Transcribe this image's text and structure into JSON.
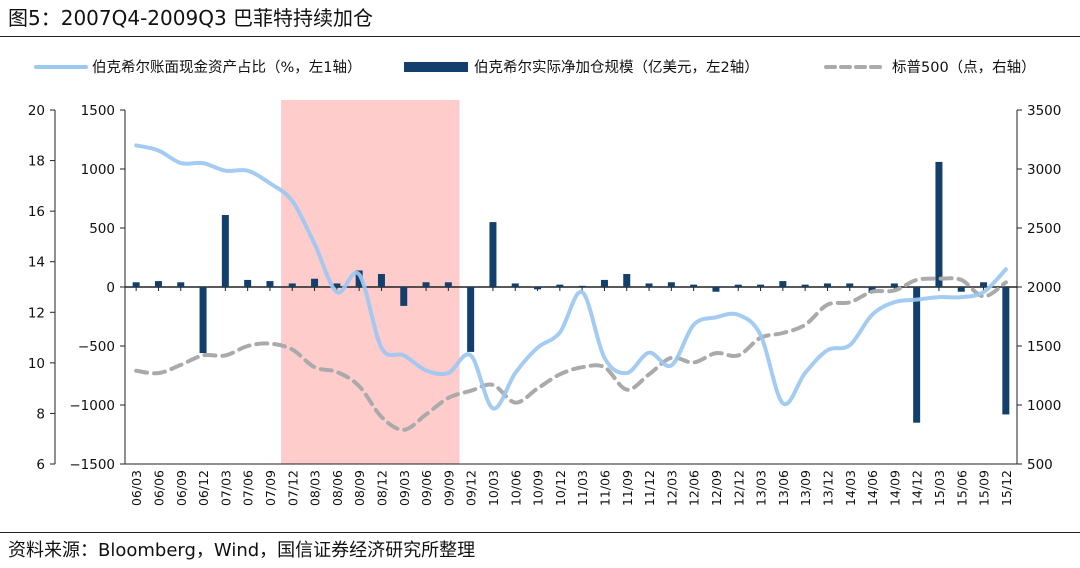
{
  "figure": {
    "title": "图5：2007Q4-2009Q3 巴菲特持续加仓",
    "source": "资料来源：Bloomberg，Wind，国信证券经济研究所整理"
  },
  "colors": {
    "pct_line": "#9cc8f2",
    "bars": "#123f6b",
    "sp500": "#aaaaaa",
    "highlight": "#ffcccc",
    "axis": "#222222"
  },
  "chart_data": {
    "type": "bar",
    "categories": [
      "06/03",
      "06/06",
      "06/09",
      "06/12",
      "07/03",
      "07/06",
      "07/09",
      "07/12",
      "08/03",
      "08/06",
      "08/09",
      "08/12",
      "09/03",
      "09/06",
      "09/09",
      "09/12",
      "10/03",
      "10/06",
      "10/09",
      "10/12",
      "11/03",
      "11/06",
      "11/09",
      "11/12",
      "12/03",
      "12/06",
      "12/09",
      "12/12",
      "13/03",
      "13/06",
      "13/09",
      "13/12",
      "14/03",
      "14/06",
      "14/09",
      "14/12",
      "15/03",
      "15/06",
      "15/09",
      "15/12"
    ],
    "highlight_range": [
      "07/12",
      "09/09"
    ],
    "legend_position": "top",
    "grid": false,
    "axes": {
      "left1": {
        "ylim": [
          6,
          20
        ],
        "ticks": [
          "6",
          "8",
          "10",
          "12",
          "14",
          "16",
          "18",
          "20"
        ]
      },
      "left2": {
        "ylim": [
          -1500,
          1500
        ],
        "ticks": [
          "−1500",
          "−1000",
          "−500",
          "0",
          "500",
          "1000",
          "1500"
        ]
      },
      "right": {
        "ylim": [
          500,
          3500
        ],
        "ticks": [
          "500",
          "1000",
          "1500",
          "2000",
          "2500",
          "3000",
          "3500"
        ]
      }
    },
    "series": [
      {
        "name": "伯克希尔账面现金资产占比（%，左1轴）",
        "type": "line",
        "axis": "left1",
        "values": [
          18.6,
          18.4,
          17.9,
          17.9,
          17.6,
          17.6,
          17.1,
          16.4,
          14.7,
          12.8,
          13.5,
          10.6,
          10.3,
          9.7,
          9.6,
          10.3,
          8.2,
          9.6,
          10.6,
          11.2,
          12.8,
          10.2,
          9.6,
          10.4,
          9.9,
          11.5,
          11.8,
          11.9,
          11.1,
          8.4,
          9.6,
          10.5,
          10.7,
          11.9,
          12.4,
          12.5,
          12.6,
          12.6,
          12.8,
          13.7
        ]
      },
      {
        "name": "伯克希尔实际净加仓规模（亿美元，左2轴）",
        "type": "bar",
        "axis": "left2",
        "values": [
          40,
          50,
          40,
          -560,
          610,
          60,
          50,
          30,
          70,
          30,
          140,
          110,
          -160,
          40,
          40,
          -550,
          550,
          30,
          -20,
          20,
          10,
          60,
          110,
          30,
          40,
          20,
          -40,
          20,
          20,
          50,
          20,
          30,
          30,
          -50,
          30,
          -1150,
          1060,
          -40,
          40,
          -1080
        ]
      },
      {
        "name": "标普500（点，右轴）",
        "type": "line",
        "dashed": true,
        "axis": "right",
        "values": [
          1290,
          1270,
          1340,
          1420,
          1420,
          1500,
          1520,
          1470,
          1320,
          1280,
          1160,
          900,
          790,
          920,
          1060,
          1120,
          1170,
          1020,
          1140,
          1260,
          1320,
          1320,
          1130,
          1260,
          1400,
          1360,
          1440,
          1420,
          1570,
          1610,
          1680,
          1850,
          1870,
          1960,
          1970,
          2060,
          2070,
          2060,
          1920,
          2040
        ]
      }
    ]
  }
}
